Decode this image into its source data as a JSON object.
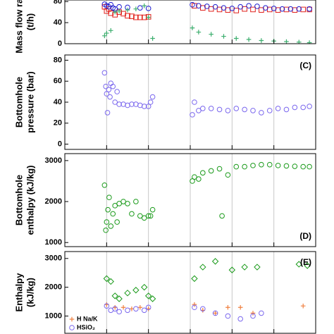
{
  "chart_data": [
    {
      "type": "scatter",
      "ylabel": [
        "Mass flow rate",
        "(t/h)"
      ],
      "xlim": [
        0,
        6
      ],
      "xticks": [
        1,
        2,
        3,
        4,
        5
      ],
      "ylim": [
        0,
        83
      ],
      "yticks": [
        0,
        40,
        80
      ],
      "grid": true,
      "series": [
        {
          "color": "#e0201b",
          "marker": "square",
          "x": [
            0.95,
            1.0,
            1.05,
            1.1,
            1.2,
            1.3,
            1.4,
            1.5,
            1.6,
            1.7,
            1.8,
            1.9,
            2.0,
            3.1,
            3.3,
            3.5,
            3.7,
            3.9,
            4.1,
            4.3,
            4.5,
            4.7,
            4.9,
            5.1,
            5.3,
            5.5,
            5.7,
            5.85
          ],
          "values": [
            70,
            62,
            66,
            58,
            55,
            60,
            57,
            53,
            52,
            50,
            50,
            50,
            51,
            72,
            68,
            66,
            65,
            64,
            63,
            66,
            65,
            64,
            65,
            64,
            65,
            64,
            65,
            65
          ]
        },
        {
          "color": "#1f1fd0",
          "marker": "circle",
          "x": [
            0.95,
            1.0,
            1.05,
            1.1,
            1.15,
            1.2,
            1.3,
            1.5,
            1.8,
            2.0,
            3.05,
            3.2,
            3.4,
            3.6,
            3.8,
            4.0,
            4.2,
            4.4,
            4.6,
            4.8,
            5.0,
            5.2,
            5.4,
            5.6,
            5.85
          ],
          "values": [
            75,
            72,
            70,
            74,
            68,
            66,
            70,
            69,
            68,
            67,
            74,
            72,
            71,
            70,
            68,
            67,
            70,
            72,
            71,
            68,
            67,
            66,
            66,
            66,
            66
          ]
        },
        {
          "color": "#3cae6e",
          "marker": "plus",
          "x": [
            0.95,
            1.0,
            1.1,
            1.2,
            1.3,
            1.5,
            1.7,
            1.9,
            2.0,
            2.1,
            3.05,
            3.2,
            3.5,
            3.8,
            4.1,
            4.4,
            4.7,
            5.0,
            5.3,
            5.6,
            5.85
          ],
          "values": [
            15,
            20,
            25,
            60,
            62,
            64,
            66,
            72,
            50,
            10,
            30,
            22,
            18,
            14,
            10,
            8,
            6,
            5,
            4,
            3,
            2
          ]
        }
      ]
    },
    {
      "type": "scatter",
      "ylabel": [
        "Bottomhole",
        "pressure (bar)"
      ],
      "panel_label": "(C)",
      "panel_label_corner": "upper right",
      "xlim": [
        0,
        6
      ],
      "xticks": [
        1,
        2,
        3,
        4,
        5
      ],
      "ylim": [
        -5,
        85
      ],
      "yticks": [
        0,
        20,
        40,
        60,
        80
      ],
      "grid": true,
      "series": [
        {
          "color": "#7b68ee",
          "marker": "circle",
          "x": [
            0.95,
            0.98,
            1.0,
            1.02,
            1.05,
            1.08,
            1.1,
            1.15,
            1.2,
            1.25,
            1.3,
            1.4,
            1.5,
            1.6,
            1.7,
            1.8,
            1.9,
            2.0,
            2.05,
            2.1,
            3.05,
            3.1,
            3.2,
            3.3,
            3.5,
            3.7,
            3.9,
            4.1,
            4.3,
            4.5,
            4.7,
            4.9,
            5.1,
            5.3,
            5.5,
            5.7,
            5.85
          ],
          "values": [
            68,
            55,
            48,
            30,
            52,
            45,
            58,
            55,
            40,
            50,
            38,
            38,
            37,
            38,
            38,
            37,
            36,
            36,
            40,
            45,
            28,
            40,
            32,
            34,
            34,
            33,
            32,
            34,
            33,
            32,
            30,
            32,
            34,
            33,
            35,
            35,
            36
          ]
        }
      ]
    },
    {
      "type": "scatter",
      "ylabel": [
        "Bottomhole",
        "enthalpy (kJ/kg)"
      ],
      "panel_label": "(D)",
      "panel_label_corner": "lower right",
      "xlim": [
        0,
        6
      ],
      "xticks": [
        1,
        2,
        3,
        4,
        5
      ],
      "ylim": [
        900,
        3170
      ],
      "yticks": [
        1000,
        2000,
        3000
      ],
      "grid": true,
      "series": [
        {
          "color": "#1a9a1a",
          "marker": "circle",
          "x": [
            0.95,
            0.98,
            1.0,
            1.03,
            1.06,
            1.1,
            1.15,
            1.2,
            1.25,
            1.3,
            1.4,
            1.5,
            1.6,
            1.7,
            1.8,
            1.9,
            2.0,
            2.05,
            2.1,
            3.05,
            3.1,
            3.2,
            3.3,
            3.5,
            3.7,
            3.76,
            3.9,
            4.1,
            4.3,
            4.5,
            4.7,
            4.9,
            5.1,
            5.3,
            5.5,
            5.7,
            5.85
          ],
          "values": [
            2400,
            1300,
            1500,
            1800,
            2100,
            1400,
            1700,
            1900,
            1500,
            1950,
            2000,
            1950,
            1700,
            2000,
            1650,
            1600,
            1650,
            1650,
            1800,
            2500,
            2600,
            2550,
            2700,
            2750,
            2800,
            1650,
            2650,
            2850,
            2850,
            2880,
            2900,
            2900,
            2880,
            2870,
            2860,
            2850,
            2850
          ]
        }
      ]
    },
    {
      "type": "scatter",
      "ylabel": [
        "Enthalpy",
        "(kJ/kg)"
      ],
      "panel_label": "(E)",
      "panel_label_corner": "upper right",
      "legend": "lower left",
      "xlim": [
        0,
        6
      ],
      "xticks": [
        1,
        2,
        3,
        4,
        5
      ],
      "ylim": [
        400,
        3240
      ],
      "yticks": [
        1000,
        2000,
        3000
      ],
      "grid": true,
      "series": [
        {
          "color": "#1a9a1a",
          "marker": "diamond",
          "x": [
            1.0,
            1.1,
            1.2,
            1.3,
            1.5,
            1.7,
            1.9,
            2.0,
            2.1,
            3.1,
            3.3,
            3.6,
            4.0,
            4.3,
            4.6,
            5.6,
            5.8
          ],
          "values": [
            2300,
            2200,
            1700,
            1600,
            1800,
            1900,
            2000,
            1700,
            1600,
            2300,
            2700,
            2900,
            2600,
            2700,
            2700,
            2800,
            2750
          ]
        },
        {
          "name": "H Na/K",
          "color": "#f08040",
          "marker": "plus",
          "x": [
            1.0,
            1.2,
            1.4,
            1.6,
            1.8,
            2.0,
            3.1,
            3.3,
            3.6,
            3.9,
            4.2,
            4.5,
            5.7
          ],
          "values": [
            1400,
            1300,
            1300,
            1250,
            1300,
            1250,
            1400,
            1200,
            1100,
            1300,
            1300,
            1100,
            1350
          ]
        },
        {
          "name": "HSiO₂",
          "color": "#7b68ee",
          "marker": "circle",
          "x": [
            1.0,
            1.1,
            1.2,
            1.3,
            1.5,
            1.7,
            1.9,
            2.0,
            3.1,
            3.3,
            3.6,
            3.9,
            4.2,
            4.5,
            4.7
          ],
          "values": [
            1350,
            1200,
            1250,
            1150,
            1200,
            1250,
            1200,
            1300,
            1300,
            1250,
            1100,
            1000,
            900,
            1000,
            1100
          ]
        }
      ]
    }
  ]
}
